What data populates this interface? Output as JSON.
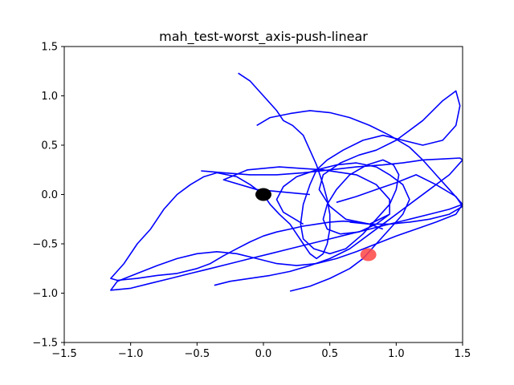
{
  "chart_data": {
    "type": "line",
    "title": "mah_test-worst_axis-push-linear",
    "xlabel": "",
    "ylabel": "",
    "xlim": [
      -1.5,
      1.5
    ],
    "ylim": [
      -1.5,
      1.5
    ],
    "xticks": [
      -1.5,
      -1.0,
      -0.5,
      0.0,
      0.5,
      1.0,
      1.5
    ],
    "yticks": [
      -1.5,
      -1.0,
      -0.5,
      0.0,
      0.5,
      1.0,
      1.5
    ],
    "xtick_labels": [
      "−1.5",
      "−1.0",
      "−0.5",
      "0.0",
      "0.5",
      "1.0",
      "1.5"
    ],
    "ytick_labels": [
      "−1.5",
      "−1.0",
      "−0.5",
      "0.0",
      "0.5",
      "1.0",
      "1.5"
    ],
    "grid": false,
    "series": [
      {
        "color": "#0000ff",
        "x": [
          0.35,
          -0.05,
          -0.3,
          -0.12,
          0.12,
          0.45,
          0.7,
          0.85,
          0.95,
          0.95,
          0.8,
          0.62,
          0.5,
          0.42,
          0.45,
          0.58,
          0.72,
          0.85,
          1.0,
          1.2,
          1.35,
          1.45,
          1.48,
          1.45,
          1.35,
          1.2,
          1.05,
          0.9,
          0.75,
          0.6,
          0.48,
          0.4,
          0.35,
          0.3,
          0.28,
          0.3,
          0.38,
          0.5,
          0.62,
          0.75,
          0.85,
          0.95,
          1.0,
          1.02,
          0.98,
          0.9,
          0.78,
          0.65,
          0.55,
          0.48,
          0.45,
          0.48,
          0.58,
          0.72,
          0.85,
          0.95
        ],
        "y": [
          0.0,
          0.05,
          0.15,
          0.25,
          0.28,
          0.25,
          0.2,
          0.1,
          -0.05,
          -0.2,
          -0.3,
          -0.25,
          -0.12,
          0.05,
          0.2,
          0.32,
          0.4,
          0.45,
          0.55,
          0.75,
          0.95,
          1.05,
          0.9,
          0.7,
          0.55,
          0.5,
          0.55,
          0.6,
          0.55,
          0.45,
          0.35,
          0.25,
          0.1,
          -0.1,
          -0.3,
          -0.45,
          -0.55,
          -0.6,
          -0.55,
          -0.4,
          -0.25,
          -0.1,
          0.05,
          0.2,
          0.3,
          0.35,
          0.3,
          0.2,
          0.05,
          -0.1,
          -0.25,
          -0.35,
          -0.4,
          -0.38,
          -0.3,
          -0.2
        ]
      },
      {
        "color": "#0000ff",
        "x": [
          -0.19,
          -0.1,
          0.0,
          0.1,
          0.15,
          0.22,
          0.3,
          0.35,
          0.4,
          0.45,
          0.48,
          0.5,
          0.5,
          0.48,
          0.45,
          0.4,
          0.35,
          0.3,
          0.25,
          0.2,
          0.12,
          0.05,
          0.0,
          -0.1,
          -0.2,
          -0.35,
          -0.45,
          -0.55,
          -0.65,
          -0.75,
          -0.85,
          -0.95,
          -1.05,
          -1.15,
          -1.1,
          -0.95,
          -0.8,
          -0.65,
          -0.5,
          -0.4,
          -0.3,
          -0.2,
          -0.1,
          0.0,
          0.1,
          0.2,
          0.3,
          0.4,
          0.5,
          0.6,
          0.7,
          0.8,
          0.9
        ],
        "y": [
          1.23,
          1.15,
          1.0,
          0.85,
          0.75,
          0.7,
          0.6,
          0.45,
          0.3,
          0.1,
          -0.05,
          -0.2,
          -0.35,
          -0.5,
          -0.6,
          -0.65,
          -0.6,
          -0.5,
          -0.4,
          -0.3,
          -0.2,
          -0.1,
          0.0,
          0.1,
          0.18,
          0.22,
          0.18,
          0.1,
          0.0,
          -0.15,
          -0.35,
          -0.5,
          -0.7,
          -0.85,
          -0.87,
          -0.85,
          -0.82,
          -0.8,
          -0.75,
          -0.7,
          -0.62,
          -0.55,
          -0.48,
          -0.42,
          -0.38,
          -0.35,
          -0.32,
          -0.3,
          -0.28,
          -0.27,
          -0.28,
          -0.3,
          -0.35
        ]
      },
      {
        "color": "#0000ff",
        "x": [
          -0.05,
          0.05,
          0.2,
          0.35,
          0.5,
          0.65,
          0.8,
          0.95,
          1.1,
          1.2,
          1.3,
          1.4,
          1.5,
          1.45,
          1.3,
          1.15,
          1.0,
          0.85,
          0.7,
          0.55,
          0.4,
          0.25,
          0.1,
          -0.05,
          -0.2,
          -0.35,
          -0.5,
          -0.65,
          -0.8,
          -0.95,
          -1.1,
          -1.15,
          -1.0,
          -0.85,
          -0.7,
          -0.55,
          -0.4,
          -0.25,
          -0.1,
          0.05,
          0.2,
          0.35,
          0.5,
          0.65,
          0.8,
          0.95,
          1.1,
          1.25,
          1.4,
          1.5
        ],
        "y": [
          0.7,
          0.78,
          0.82,
          0.85,
          0.83,
          0.78,
          0.7,
          0.6,
          0.48,
          0.35,
          0.2,
          0.05,
          -0.1,
          -0.2,
          -0.28,
          -0.35,
          -0.42,
          -0.5,
          -0.58,
          -0.65,
          -0.7,
          -0.72,
          -0.7,
          -0.65,
          -0.6,
          -0.58,
          -0.6,
          -0.65,
          -0.72,
          -0.8,
          -0.88,
          -0.97,
          -0.95,
          -0.9,
          -0.85,
          -0.8,
          -0.75,
          -0.7,
          -0.65,
          -0.6,
          -0.55,
          -0.5,
          -0.45,
          -0.4,
          -0.35,
          -0.3,
          -0.25,
          -0.2,
          -0.15,
          -0.1
        ]
      },
      {
        "color": "#0000ff",
        "x": [
          -0.47,
          -0.3,
          -0.1,
          0.1,
          0.3,
          0.5,
          0.7,
          0.9,
          1.05,
          1.2,
          1.35,
          1.48,
          1.5,
          1.4,
          1.25,
          1.1,
          0.95,
          0.8,
          0.65,
          0.5,
          0.35,
          0.2,
          0.05,
          -0.1,
          -0.25,
          -0.37
        ],
        "y": [
          0.24,
          0.22,
          0.2,
          0.2,
          0.22,
          0.25,
          0.28,
          0.3,
          0.32,
          0.35,
          0.36,
          0.37,
          0.35,
          0.2,
          0.05,
          -0.1,
          -0.25,
          -0.4,
          -0.55,
          -0.65,
          -0.72,
          -0.78,
          -0.82,
          -0.85,
          -0.88,
          -0.92
        ]
      },
      {
        "color": "#0000ff",
        "x": [
          0.55,
          0.7,
          0.85,
          1.0,
          1.15,
          1.3,
          1.45,
          1.5,
          1.4,
          1.25,
          1.1,
          0.95,
          0.8,
          0.65
        ],
        "y": [
          -0.08,
          -0.02,
          0.05,
          0.12,
          0.2,
          0.1,
          -0.02,
          -0.12,
          -0.2,
          -0.25,
          -0.28,
          -0.3,
          -0.3,
          -0.28
        ]
      },
      {
        "color": "#0000ff",
        "x": [
          0.2,
          0.35,
          0.5,
          0.65,
          0.75,
          0.85,
          0.95,
          1.05,
          1.1,
          1.05,
          0.95,
          0.85,
          0.7,
          0.55,
          0.4,
          0.25,
          0.15,
          0.1,
          0.15,
          0.3
        ],
        "y": [
          -0.98,
          -0.93,
          -0.85,
          -0.75,
          -0.65,
          -0.5,
          -0.35,
          -0.2,
          -0.05,
          0.1,
          0.2,
          0.28,
          0.32,
          0.3,
          0.25,
          0.18,
          0.08,
          -0.05,
          -0.18,
          -0.3
        ]
      }
    ],
    "markers": [
      {
        "name": "start",
        "x": 0.0,
        "y": 0.0,
        "color": "#000000"
      },
      {
        "name": "goal",
        "x": 0.79,
        "y": -0.61,
        "color": "#ff4444"
      }
    ]
  }
}
